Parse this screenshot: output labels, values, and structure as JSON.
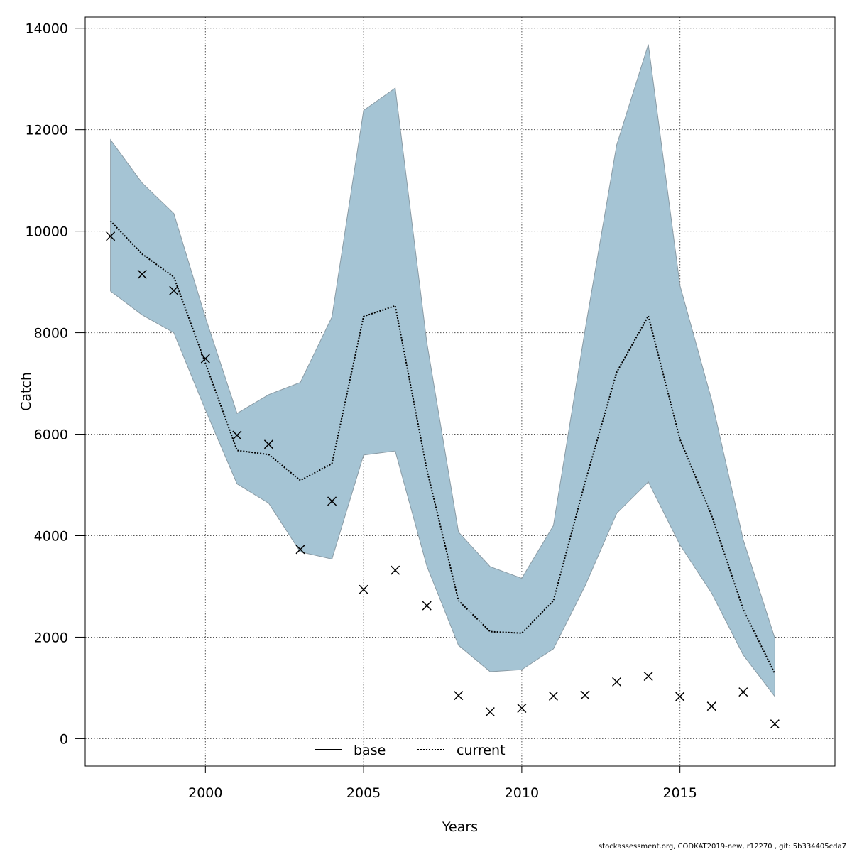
{
  "chart_data": {
    "type": "line",
    "xlabel": "Years",
    "ylabel": "Catch",
    "xlim": [
      1996.2,
      2019.9
    ],
    "ylim": [
      -540,
      14220
    ],
    "x_ticks": [
      2000,
      2005,
      2010,
      2015
    ],
    "y_ticks": [
      0,
      2000,
      4000,
      6000,
      8000,
      10000,
      12000,
      14000
    ],
    "grid": true,
    "legend_position": "bottom-center",
    "colors": {
      "band": "#a5c4d4",
      "band_edge": "#8a9ba5",
      "base": "#000000",
      "current": "#000000"
    },
    "x": [
      1997,
      1998,
      1999,
      2000,
      2001,
      2002,
      2003,
      2004,
      2005,
      2006,
      2007,
      2008,
      2009,
      2010,
      2011,
      2012,
      2013,
      2014,
      2015,
      2016,
      2017,
      2018
    ],
    "series": [
      {
        "name": "current",
        "style": "dotted",
        "values": [
          10200,
          9550,
          9100,
          7400,
          5680,
          5600,
          5090,
          5420,
          8320,
          8530,
          5300,
          2720,
          2110,
          2080,
          2720,
          5050,
          7220,
          8330,
          5900,
          4400,
          2550,
          1280
        ]
      },
      {
        "name": "current_lower",
        "role": "band-lower",
        "values": [
          8820,
          8350,
          8000,
          6480,
          5020,
          4640,
          3680,
          3540,
          5590,
          5670,
          3400,
          1840,
          1320,
          1360,
          1770,
          3010,
          4440,
          5060,
          3820,
          2870,
          1650,
          830
        ]
      },
      {
        "name": "current_upper",
        "role": "band-upper",
        "values": [
          11800,
          10950,
          10350,
          8300,
          6410,
          6780,
          7020,
          8310,
          12380,
          12820,
          7800,
          4070,
          3390,
          3160,
          4200,
          8050,
          11700,
          13680,
          8930,
          6680,
          3920,
          1980
        ]
      },
      {
        "name": "observed",
        "style": "cross-marker",
        "values": [
          9900,
          9150,
          8830,
          7490,
          5980,
          5800,
          3730,
          4680,
          2940,
          3320,
          2620,
          850,
          530,
          600,
          840,
          860,
          1120,
          1230,
          830,
          640,
          920,
          290
        ]
      }
    ],
    "legend": [
      {
        "label": "base",
        "style": "solid"
      },
      {
        "label": "current",
        "style": "dotted"
      }
    ],
    "footer": "stockassessment.org, CODKAT2019-new, r12270 , git: 5b334405cda7"
  }
}
